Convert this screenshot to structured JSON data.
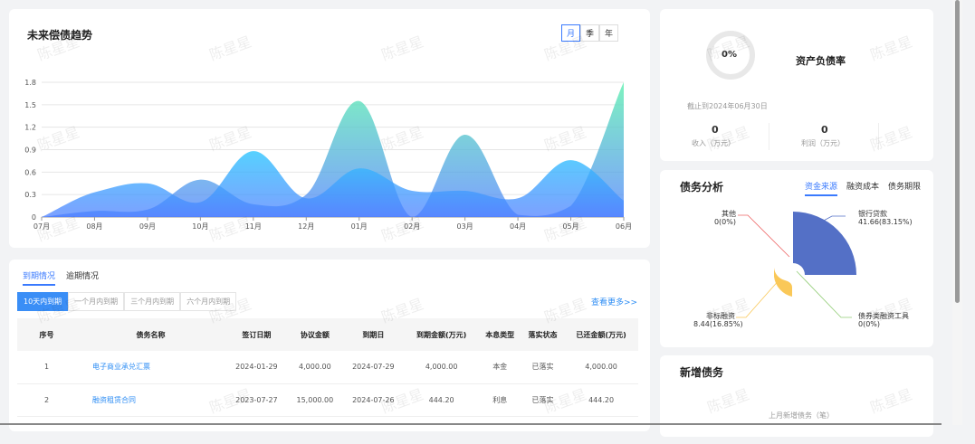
{
  "watermark": "陈星星",
  "trend": {
    "title": "未来偿债趋势",
    "periods": [
      "月",
      "季",
      "年"
    ],
    "active_period": "月"
  },
  "chart_data": {
    "type": "area",
    "x": [
      "07月",
      "08月",
      "09月",
      "10月",
      "11月",
      "12月",
      "01月",
      "02月",
      "03月",
      "04月",
      "05月",
      "06月"
    ],
    "ylim": [
      0,
      1.8
    ],
    "yticks": [
      "0",
      "0.3",
      "0.6",
      "0.9",
      "1.2",
      "1.5",
      "1.8"
    ],
    "series": [
      {
        "values": [
          0,
          0.08,
          0.1,
          0.5,
          0.17,
          0.3,
          1.55,
          0,
          1.1,
          0.03,
          0.15,
          1.8
        ],
        "color": "#5ef0b0"
      },
      {
        "values": [
          0,
          0.33,
          0.45,
          0.2,
          0.88,
          0.25,
          0.65,
          0.35,
          0.35,
          0.25,
          0.76,
          0.22
        ],
        "color": "#2ec6ff"
      }
    ]
  },
  "due": {
    "tabs": [
      "到期情况",
      "逾期情况"
    ],
    "ranges": [
      "10天内到期",
      "一个月内到期",
      "三个月内到期",
      "六个月内到期"
    ],
    "more": "查看更多>>",
    "columns": [
      "序号",
      "债务名称",
      "签订日期",
      "协议金额",
      "到期日",
      "到期金额(万元)",
      "本息类型",
      "落实状态",
      "已还金额(万元)"
    ],
    "rows": [
      [
        "1",
        "电子商业承兑汇票",
        "2024-01-29",
        "4,000.00",
        "2024-07-29",
        "4,000.00",
        "本金",
        "已落实",
        "4,000.00"
      ],
      [
        "2",
        "融资租赁合同",
        "2023-07-27",
        "15,000.00",
        "2024-07-26",
        "444.20",
        "利息",
        "已落实",
        "444.20"
      ]
    ]
  },
  "ratio": {
    "value": "0%",
    "progress": 0,
    "title": "资产负债率",
    "as_of": "截止到2024年06月30日",
    "income": "0",
    "income_label": "收入（万元）",
    "profit": "0",
    "profit_label": "利润（万元）"
  },
  "analysis": {
    "title": "债务分析",
    "tabs": [
      "资金来源",
      "融资成本",
      "债务期限"
    ],
    "slices": [
      {
        "name": "银行贷款",
        "label": "41.66(83.15%)",
        "value": 41.66,
        "color": "#5470c6"
      },
      {
        "name": "债券类融资工具",
        "label": "0(0%)",
        "value": 0,
        "color": "#91cc75"
      },
      {
        "name": "非标融资",
        "label": "8.44(16.85%)",
        "value": 8.44,
        "color": "#fac858"
      },
      {
        "name": "其他",
        "label": "0(0%)",
        "value": 0,
        "color": "#ee6666"
      }
    ]
  },
  "new_debt": {
    "title": "新增债务",
    "last_month": "上月新增债务（笔）"
  }
}
